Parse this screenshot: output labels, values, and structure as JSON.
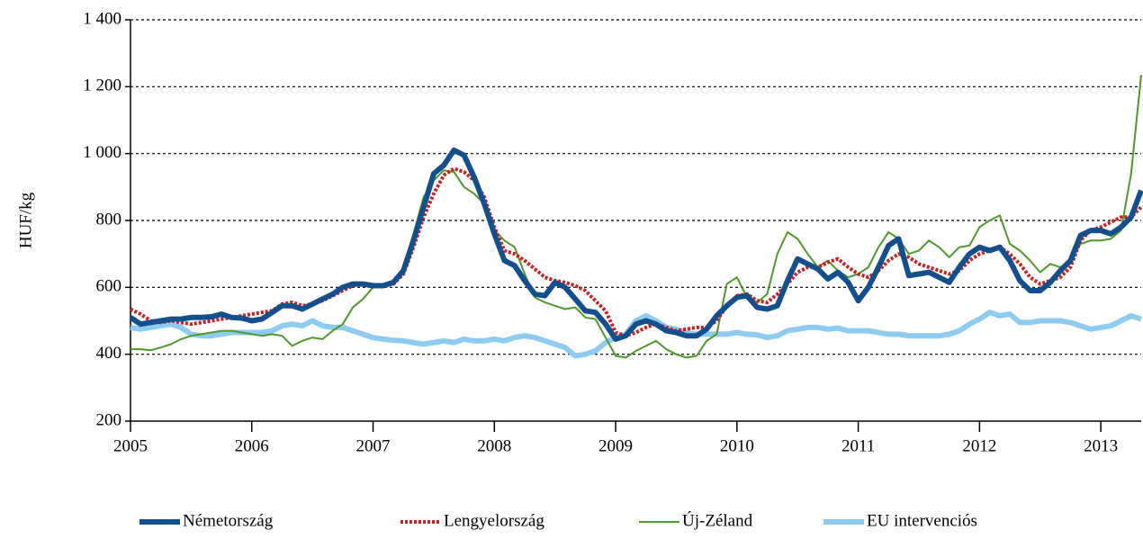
{
  "chart_data": {
    "type": "line",
    "ylabel": "HUF/kg",
    "xlim": [
      2005,
      2013.333
    ],
    "xticks": [
      2005,
      2006,
      2007,
      2008,
      2009,
      2010,
      2011,
      2012,
      2013
    ],
    "ylim": [
      200,
      1400
    ],
    "yticks": [
      200,
      400,
      600,
      800,
      {
        "value": 1000,
        "label": "1 000"
      },
      {
        "value": 1200,
        "label": "1 200"
      },
      {
        "value": 1400,
        "label": "1 400"
      }
    ],
    "grid": true,
    "legend": "bottom",
    "x": [
      2005,
      2005.083,
      2005.167,
      2005.25,
      2005.333,
      2005.417,
      2005.5,
      2005.583,
      2005.667,
      2005.75,
      2005.833,
      2005.917,
      2006,
      2006.083,
      2006.167,
      2006.25,
      2006.333,
      2006.417,
      2006.5,
      2006.583,
      2006.667,
      2006.75,
      2006.833,
      2006.917,
      2007,
      2007.083,
      2007.167,
      2007.25,
      2007.333,
      2007.417,
      2007.5,
      2007.583,
      2007.667,
      2007.75,
      2007.833,
      2007.917,
      2008,
      2008.083,
      2008.167,
      2008.25,
      2008.333,
      2008.417,
      2008.5,
      2008.583,
      2008.667,
      2008.75,
      2008.833,
      2008.917,
      2009,
      2009.083,
      2009.167,
      2009.25,
      2009.333,
      2009.417,
      2009.5,
      2009.583,
      2009.667,
      2009.75,
      2009.833,
      2009.917,
      2010,
      2010.083,
      2010.167,
      2010.25,
      2010.333,
      2010.417,
      2010.5,
      2010.583,
      2010.667,
      2010.75,
      2010.833,
      2010.917,
      2011,
      2011.083,
      2011.167,
      2011.25,
      2011.333,
      2011.417,
      2011.5,
      2011.583,
      2011.667,
      2011.75,
      2011.833,
      2011.917,
      2012,
      2012.083,
      2012.167,
      2012.25,
      2012.333,
      2012.417,
      2012.5,
      2012.583,
      2012.667,
      2012.75,
      2012.833,
      2012.917,
      2013,
      2013.083,
      2013.167,
      2013.25,
      2013.333
    ],
    "series": [
      {
        "name": "Németország",
        "color": "#134f8c",
        "width": 6,
        "dash": "solid",
        "values": [
          510,
          490,
          495,
          500,
          505,
          505,
          510,
          510,
          512,
          520,
          510,
          508,
          500,
          505,
          525,
          545,
          545,
          535,
          550,
          565,
          580,
          600,
          610,
          610,
          605,
          605,
          615,
          650,
          740,
          840,
          940,
          965,
          1010,
          995,
          930,
          850,
          760,
          680,
          665,
          620,
          580,
          575,
          615,
          600,
          565,
          530,
          525,
          490,
          445,
          455,
          490,
          500,
          490,
          470,
          465,
          455,
          455,
          475,
          515,
          545,
          570,
          575,
          540,
          535,
          545,
          620,
          685,
          670,
          655,
          625,
          645,
          615,
          560,
          600,
          660,
          725,
          745,
          635,
          640,
          645,
          630,
          615,
          660,
          700,
          720,
          710,
          720,
          680,
          620,
          590,
          590,
          615,
          650,
          680,
          755,
          770,
          770,
          760,
          780,
          810,
          890
        ]
      },
      {
        "name": "Lengyelország",
        "color": "#cc1f1f",
        "width": 4,
        "dash": "dotted",
        "values": [
          535,
          520,
          500,
          495,
          500,
          495,
          490,
          495,
          500,
          505,
          510,
          515,
          520,
          525,
          530,
          550,
          555,
          545,
          550,
          560,
          575,
          590,
          605,
          610,
          605,
          605,
          610,
          640,
          720,
          810,
          880,
          935,
          955,
          945,
          920,
          870,
          780,
          710,
          700,
          680,
          655,
          630,
          620,
          615,
          605,
          590,
          560,
          530,
          465,
          455,
          465,
          480,
          490,
          480,
          470,
          475,
          480,
          480,
          500,
          545,
          575,
          580,
          560,
          555,
          580,
          610,
          645,
          660,
          660,
          675,
          685,
          660,
          640,
          630,
          650,
          680,
          700,
          690,
          670,
          660,
          650,
          640,
          650,
          680,
          700,
          710,
          720,
          700,
          670,
          630,
          610,
          620,
          630,
          660,
          740,
          770,
          780,
          795,
          810,
          810,
          840
        ]
      },
      {
        "name": "Új-Zéland",
        "color": "#4e9a2a",
        "width": 2,
        "dash": "solid",
        "values": [
          415,
          415,
          412,
          420,
          430,
          445,
          455,
          460,
          465,
          470,
          470,
          465,
          460,
          455,
          460,
          455,
          425,
          440,
          450,
          445,
          470,
          490,
          540,
          565,
          600,
          605,
          610,
          660,
          760,
          870,
          920,
          950,
          945,
          900,
          880,
          850,
          770,
          740,
          720,
          640,
          570,
          555,
          545,
          535,
          540,
          510,
          505,
          450,
          395,
          390,
          410,
          425,
          440,
          415,
          400,
          390,
          395,
          440,
          460,
          610,
          630,
          570,
          555,
          580,
          700,
          765,
          745,
          700,
          660,
          680,
          650,
          630,
          640,
          660,
          720,
          765,
          745,
          700,
          710,
          740,
          720,
          690,
          720,
          725,
          780,
          800,
          815,
          730,
          710,
          680,
          645,
          670,
          660,
          680,
          730,
          740,
          740,
          745,
          770,
          940,
          1235
        ]
      },
      {
        "name": "EU intervenciós",
        "color": "#8ecbf0",
        "width": 6,
        "dash": "solid",
        "values": [
          480,
          475,
          480,
          485,
          490,
          480,
          460,
          455,
          455,
          460,
          465,
          465,
          465,
          465,
          470,
          485,
          490,
          485,
          500,
          485,
          480,
          480,
          470,
          460,
          450,
          445,
          442,
          440,
          435,
          430,
          435,
          440,
          435,
          445,
          440,
          440,
          445,
          440,
          450,
          455,
          450,
          440,
          430,
          420,
          395,
          400,
          410,
          435,
          450,
          460,
          500,
          515,
          500,
          480,
          475,
          465,
          460,
          460,
          460,
          460,
          465,
          460,
          458,
          450,
          455,
          470,
          475,
          480,
          480,
          475,
          478,
          470,
          470,
          470,
          465,
          460,
          460,
          455,
          455,
          455,
          455,
          460,
          470,
          490,
          505,
          525,
          515,
          520,
          495,
          495,
          500,
          500,
          500,
          495,
          485,
          475,
          480,
          485,
          500,
          515,
          505
        ]
      }
    ]
  }
}
